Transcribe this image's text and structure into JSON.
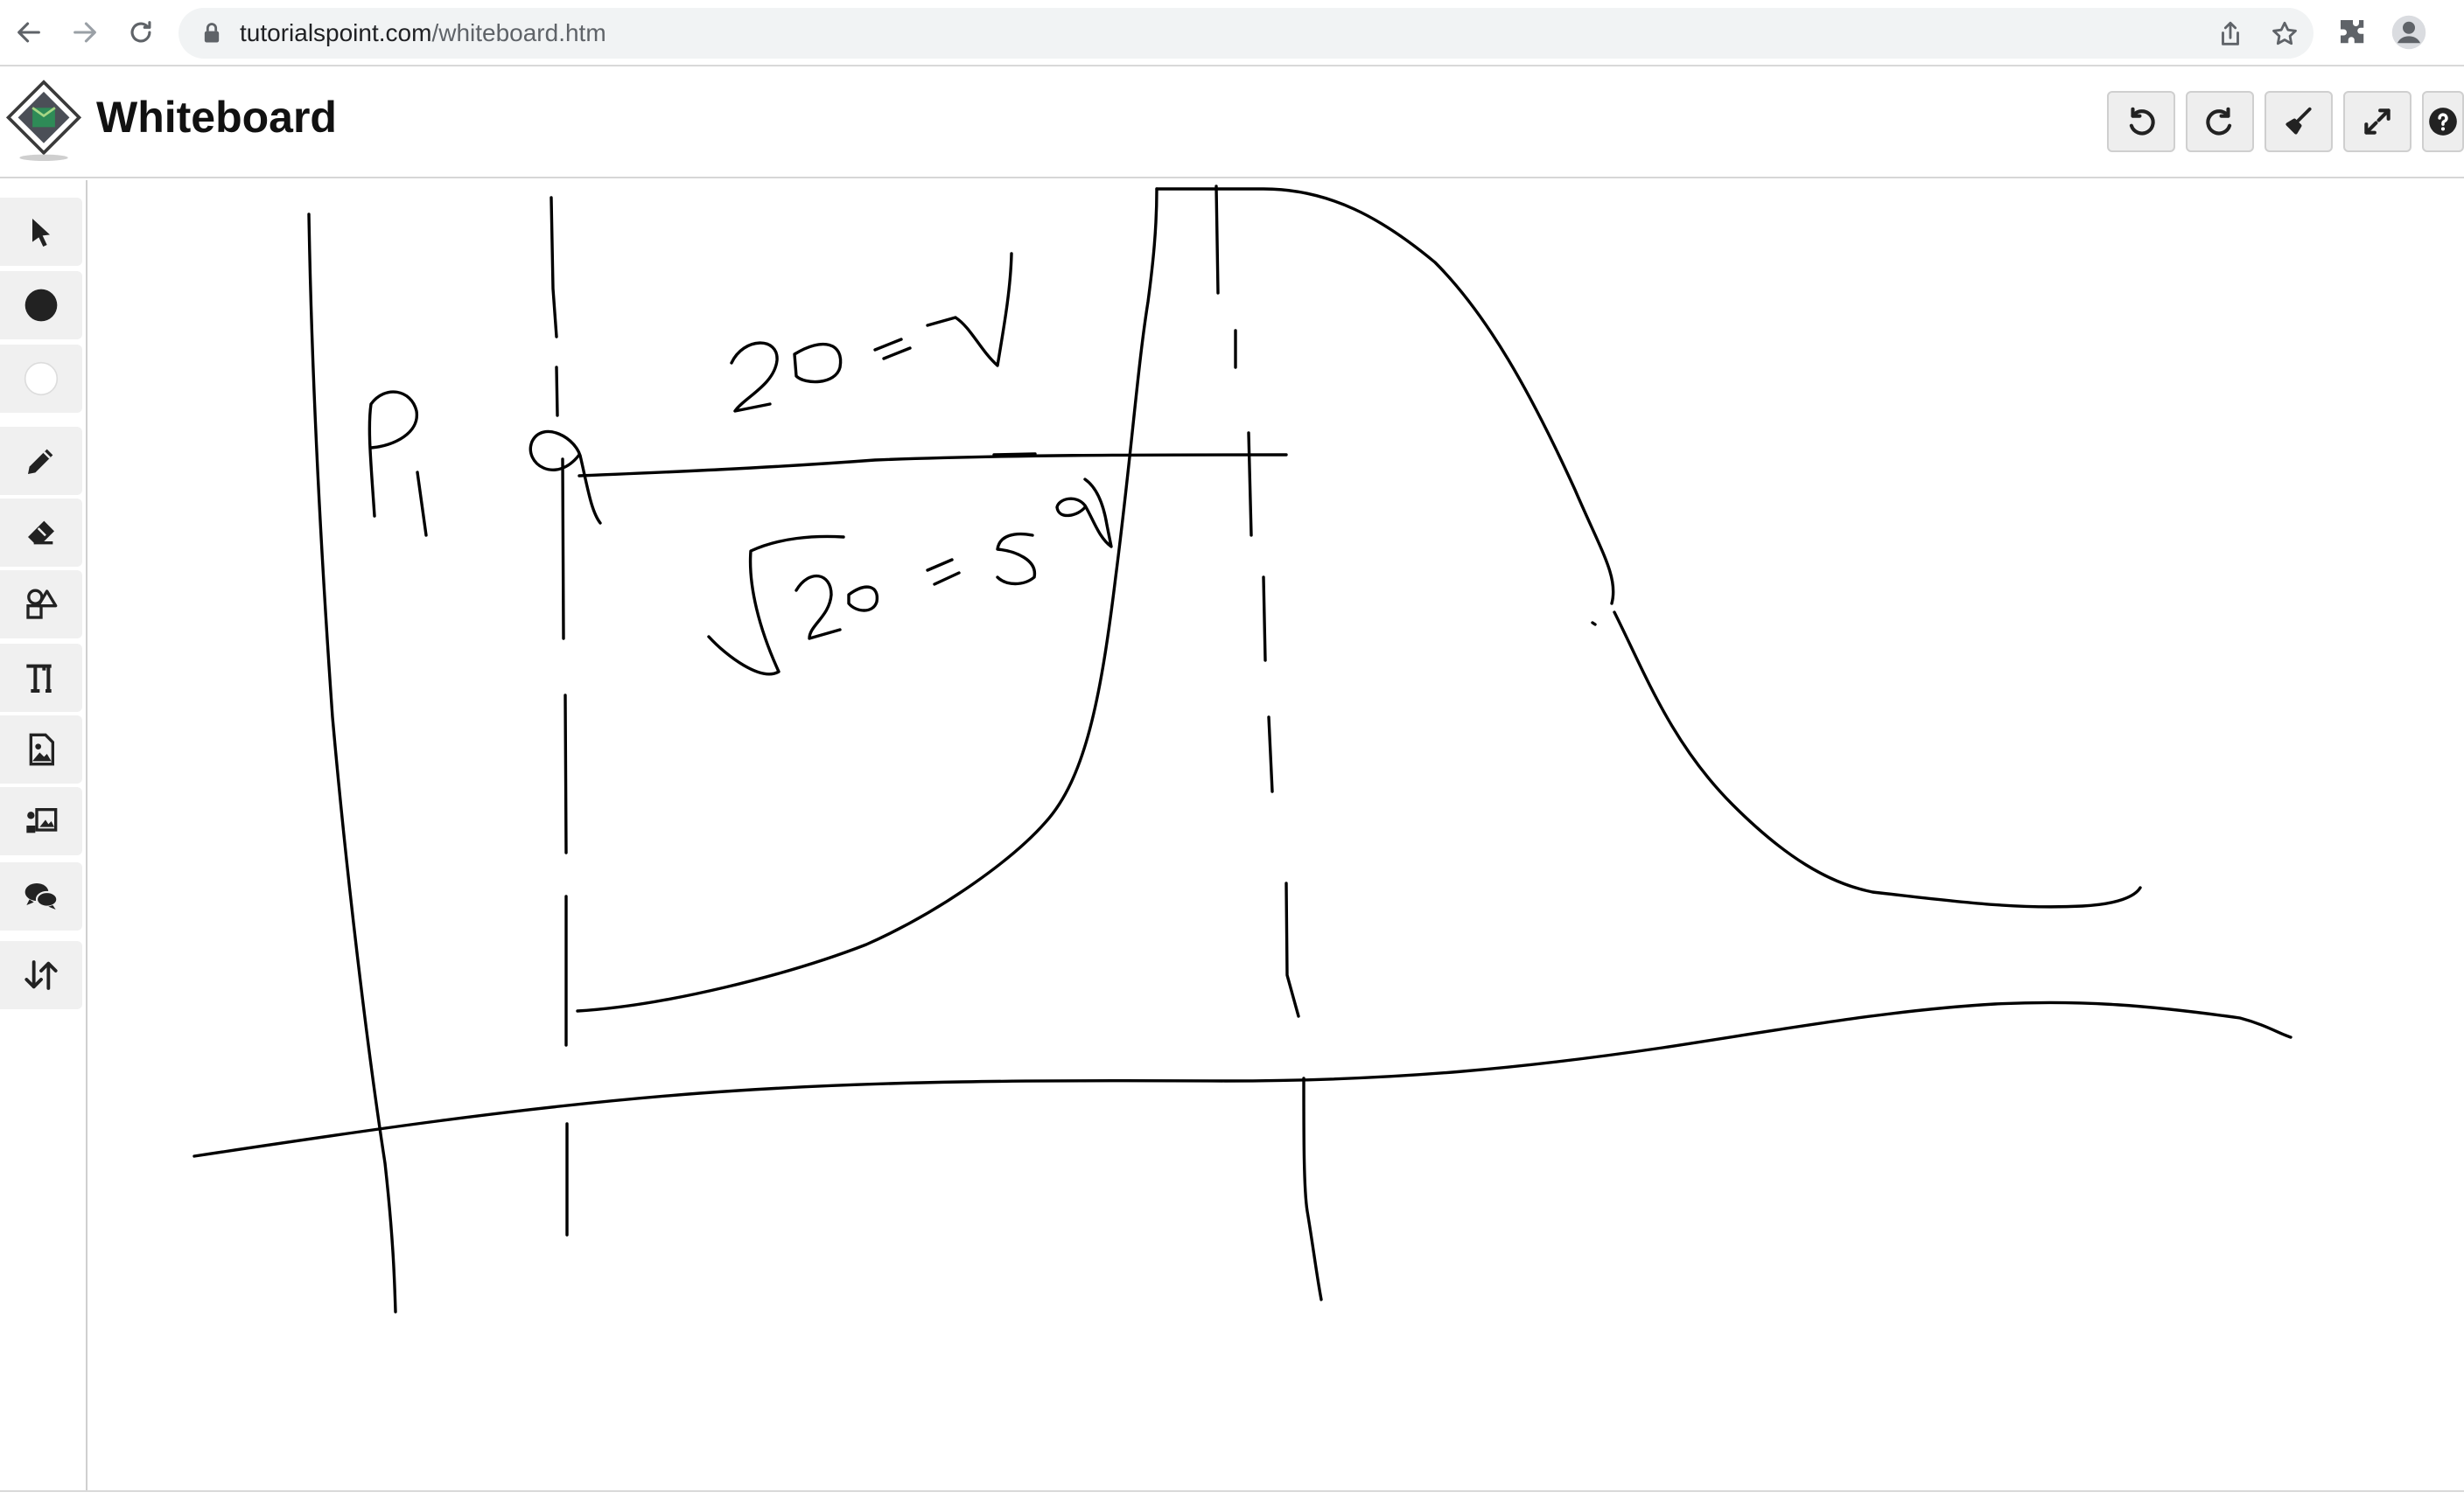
{
  "browser": {
    "url_host": "tutorialspoint.com",
    "url_path": "/whiteboard.htm",
    "icons": [
      "back-arrow-icon",
      "forward-arrow-icon",
      "reload-icon",
      "lock-icon",
      "share-icon",
      "star-icon",
      "extensions-puzzle-icon",
      "profile-avatar-icon"
    ]
  },
  "header": {
    "title": "Whiteboard",
    "buttons": [
      "undo-icon",
      "redo-icon",
      "clear-brush-icon",
      "fullscreen-icon",
      "help-icon"
    ]
  },
  "toolbar": {
    "tools": [
      "select-pointer-icon",
      "black-color-icon",
      "white-color-icon",
      "pencil-icon",
      "eraser-icon",
      "shapes-icon",
      "text-icon",
      "image-icon",
      "background-image-icon",
      "chat-icon",
      "download-upload-icon"
    ]
  },
  "colors": {
    "ink": "#000000",
    "button_bg": "#eeeeee",
    "tool_bg": "#f0f0f0"
  }
}
